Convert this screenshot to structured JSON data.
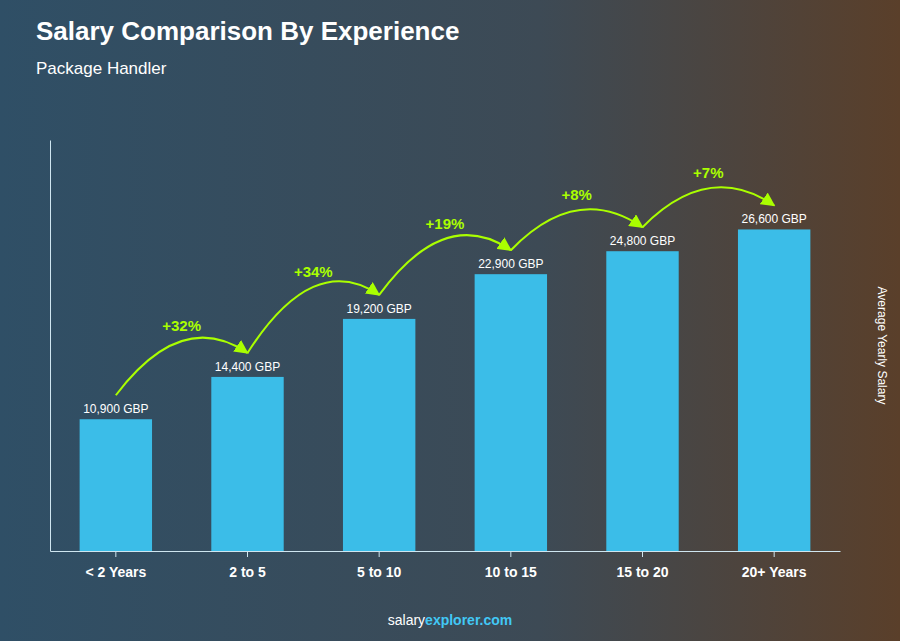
{
  "chart_data": {
    "type": "bar",
    "title": "Salary Comparison By Experience",
    "subtitle": "Package Handler",
    "categories": [
      "< 2 Years",
      "2 to 5",
      "5 to 10",
      "10 to 15",
      "15 to 20",
      "20+ Years"
    ],
    "values": [
      10900,
      14400,
      19200,
      22900,
      24800,
      26600
    ],
    "value_labels": [
      "10,900 GBP",
      "14,400 GBP",
      "19,200 GBP",
      "22,900 GBP",
      "24,800 GBP",
      "26,600 GBP"
    ],
    "data_labels": true,
    "color": "#3bbde8",
    "ylabel": "Average Yearly Salary",
    "ylim": [
      0,
      34000
    ],
    "tick_labels": "x",
    "grid": false,
    "annotations": [
      {
        "text": "+32%",
        "color": "#aaff00"
      },
      {
        "text": "+34%",
        "color": "#aaff00"
      },
      {
        "text": "+19%",
        "color": "#aaff00"
      },
      {
        "text": "+8%",
        "color": "#aaff00"
      },
      {
        "text": "+7%",
        "color": "#aaff00"
      }
    ],
    "footer": [
      {
        "text": "salary",
        "color": "#ffffff"
      },
      {
        "text": "explorer.com",
        "color": "#42c8f5"
      }
    ]
  }
}
